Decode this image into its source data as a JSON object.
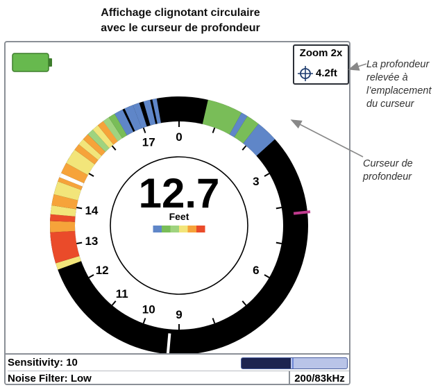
{
  "caption": {
    "line1": "Affichage clignotant circulaire",
    "line2": "avec le curseur de profondeur"
  },
  "display": {
    "depth_value": "12.7",
    "depth_unit": "Feet",
    "dial_max": 18,
    "dial_labels": [
      "0",
      "3",
      "6",
      "9",
      "10",
      "11",
      "12",
      "13",
      "14",
      "17"
    ],
    "dial_label_values": [
      0,
      3,
      6,
      9,
      10,
      11,
      12,
      13,
      14,
      17
    ],
    "color_scale": [
      "#5f86c8",
      "#79bd58",
      "#9fd37f",
      "#f2e57a",
      "#f6a33a",
      "#ea4b2a"
    ],
    "flasher_segments": [
      {
        "start": 16.1,
        "end": 16.3,
        "color": "#5f86c8"
      },
      {
        "start": 16.5,
        "end": 16.7,
        "color": "#5f86c8"
      },
      {
        "start": 16.75,
        "end": 16.95,
        "color": "#5f86c8"
      },
      {
        "start": 16.95,
        "end": 17.1,
        "color": "#5f86c8"
      },
      {
        "start": 17.2,
        "end": 17.35,
        "color": "#5f86c8"
      },
      {
        "start": 17.4,
        "end": 17.5,
        "color": "#5f86c8"
      },
      {
        "start": 0.65,
        "end": 1.45,
        "color": "#79bd58"
      },
      {
        "start": 1.45,
        "end": 1.6,
        "color": "#5f86c8"
      },
      {
        "start": 1.6,
        "end": 1.9,
        "color": "#79bd58"
      },
      {
        "start": 1.9,
        "end": 2.4,
        "color": "#5f86c8"
      },
      {
        "start": 12.5,
        "end": 12.65,
        "color": "#f2e57a"
      },
      {
        "start": 12.65,
        "end": 13.35,
        "color": "#ea4b2a"
      },
      {
        "start": 13.35,
        "end": 13.6,
        "color": "#f6a33a"
      },
      {
        "start": 13.6,
        "end": 13.75,
        "color": "#ea4b2a"
      },
      {
        "start": 13.75,
        "end": 13.95,
        "color": "#f2e57a"
      },
      {
        "start": 13.95,
        "end": 14.2,
        "color": "#f6a33a"
      },
      {
        "start": 14.2,
        "end": 14.5,
        "color": "#f2e57a"
      },
      {
        "start": 14.5,
        "end": 14.6,
        "color": "#f6a33a"
      },
      {
        "start": 14.6,
        "end": 14.7,
        "color": "#ffffff"
      },
      {
        "start": 14.7,
        "end": 14.95,
        "color": "#f6a33a"
      },
      {
        "start": 14.95,
        "end": 15.3,
        "color": "#f2e57a"
      },
      {
        "start": 15.3,
        "end": 15.45,
        "color": "#f6a33a"
      },
      {
        "start": 15.45,
        "end": 15.6,
        "color": "#f2e57a"
      },
      {
        "start": 15.6,
        "end": 15.75,
        "color": "#f6a33a"
      },
      {
        "start": 15.75,
        "end": 15.9,
        "color": "#9fd37f"
      },
      {
        "start": 15.9,
        "end": 16.05,
        "color": "#f2e57a"
      },
      {
        "start": 16.05,
        "end": 16.2,
        "color": "#f6a33a"
      },
      {
        "start": 16.2,
        "end": 16.35,
        "color": "#9fd37f"
      },
      {
        "start": 16.35,
        "end": 16.5,
        "color": "#79bd58"
      }
    ],
    "cursor_depth": 4.2,
    "cursor_color": "#c03a8e",
    "zone_marker_depth": 9.25,
    "zone_marker_color": "#ffffff",
    "battery_color": "#67b94e",
    "zoom_label": "Zoom 2x",
    "cursor_icon": "crosshair-icon",
    "cursor_depth_label": "4.2ft"
  },
  "status": {
    "sensitivity_label": "Sensitivity: 10",
    "sensitivity_level": 0.47,
    "sensitivity_mark": 0.48,
    "noise_filter_label": "Noise  Filter: Low",
    "frequency": "200/83kHz"
  },
  "callouts": {
    "depth_at_cursor": [
      "La profondeur",
      "relevée à",
      "l’emplacement",
      "du curseur"
    ],
    "depth_cursor": [
      "Curseur de",
      "profondeur"
    ]
  }
}
